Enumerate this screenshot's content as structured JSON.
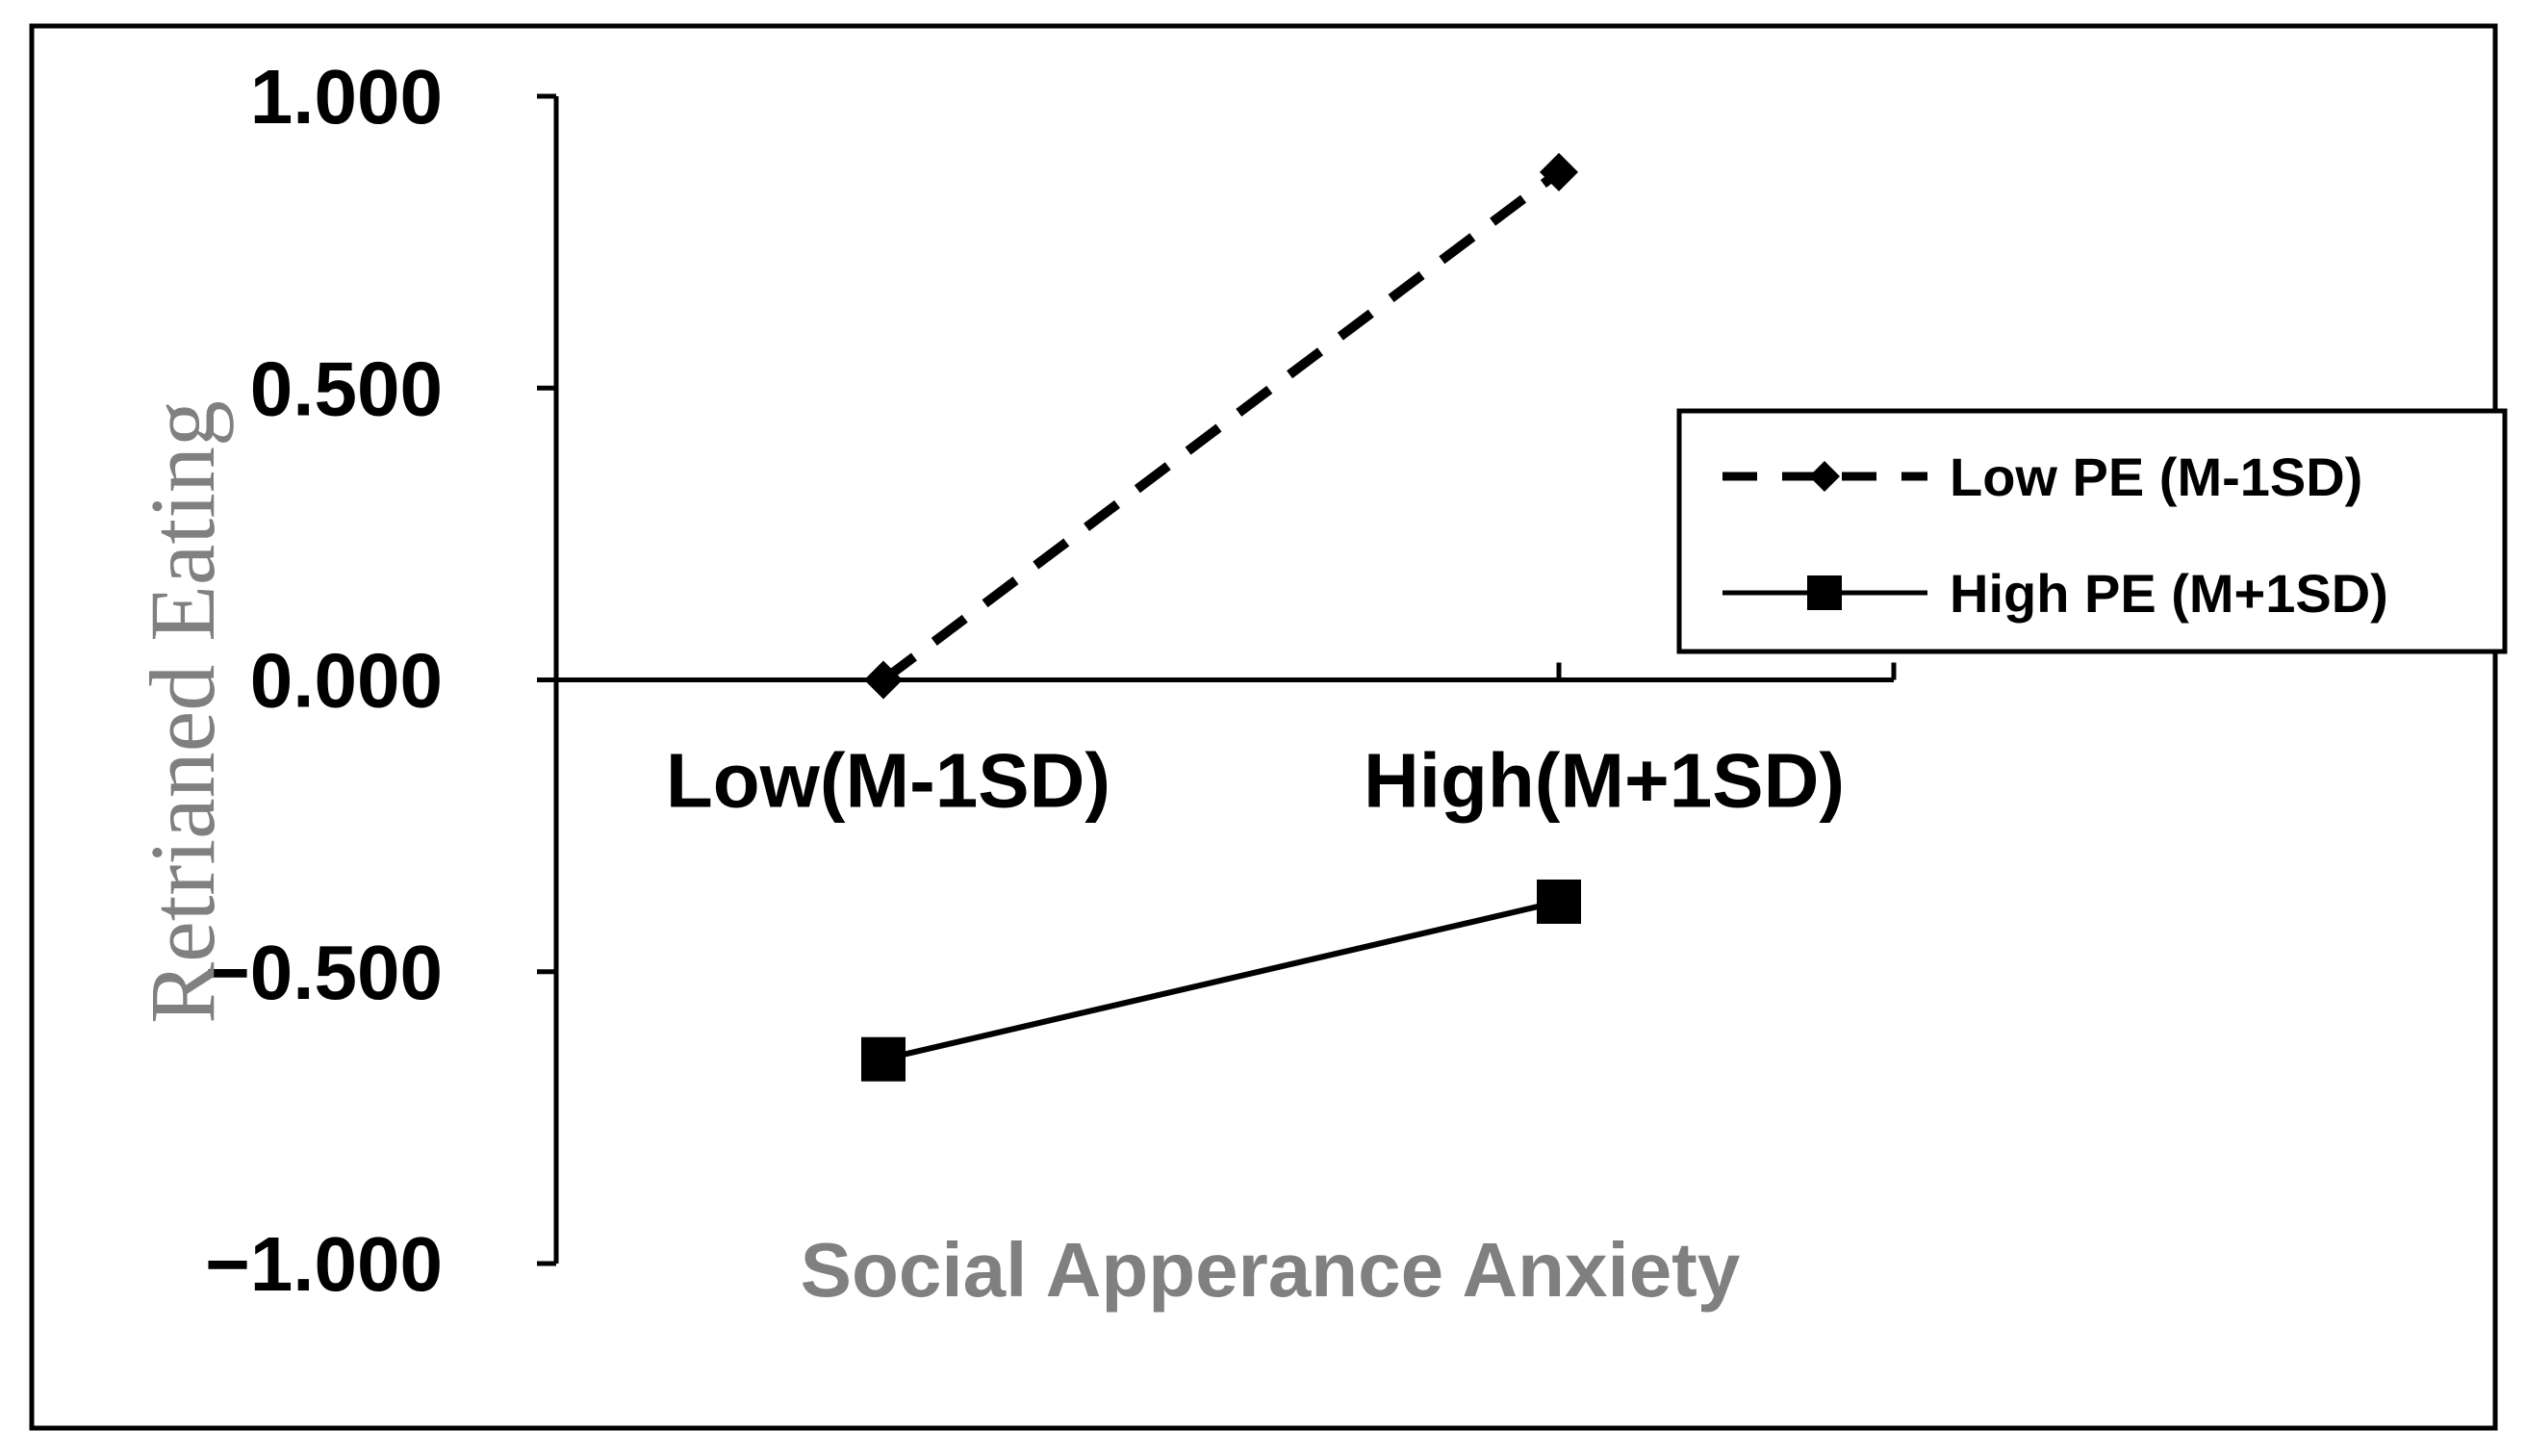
{
  "chart_data": {
    "type": "line",
    "title": "",
    "xlabel": "Social Apperance Anxiety",
    "ylabel": "Retrianed Eating",
    "categories": [
      "Low(M-1SD)",
      "High(M+1SD)"
    ],
    "y_ticks": [
      "1.000",
      "0.500",
      "0.000",
      "−0.500",
      "−1.000"
    ],
    "y_tick_values": [
      1.0,
      0.5,
      0.0,
      -0.5,
      -1.0
    ],
    "ylim": [
      -1.0,
      1.0
    ],
    "grid": false,
    "legend_position": "right",
    "series": [
      {
        "name": "Low PE (M-1SD)",
        "values": [
          0.0,
          0.87
        ],
        "line_style": "dashed",
        "marker": "diamond",
        "color": "#000000"
      },
      {
        "name": "High PE (M+1SD)",
        "values": [
          -0.65,
          -0.38
        ],
        "line_style": "solid",
        "marker": "square",
        "color": "#000000"
      }
    ],
    "colors": {
      "axis": "#000000",
      "axis_title": "#808080"
    }
  }
}
